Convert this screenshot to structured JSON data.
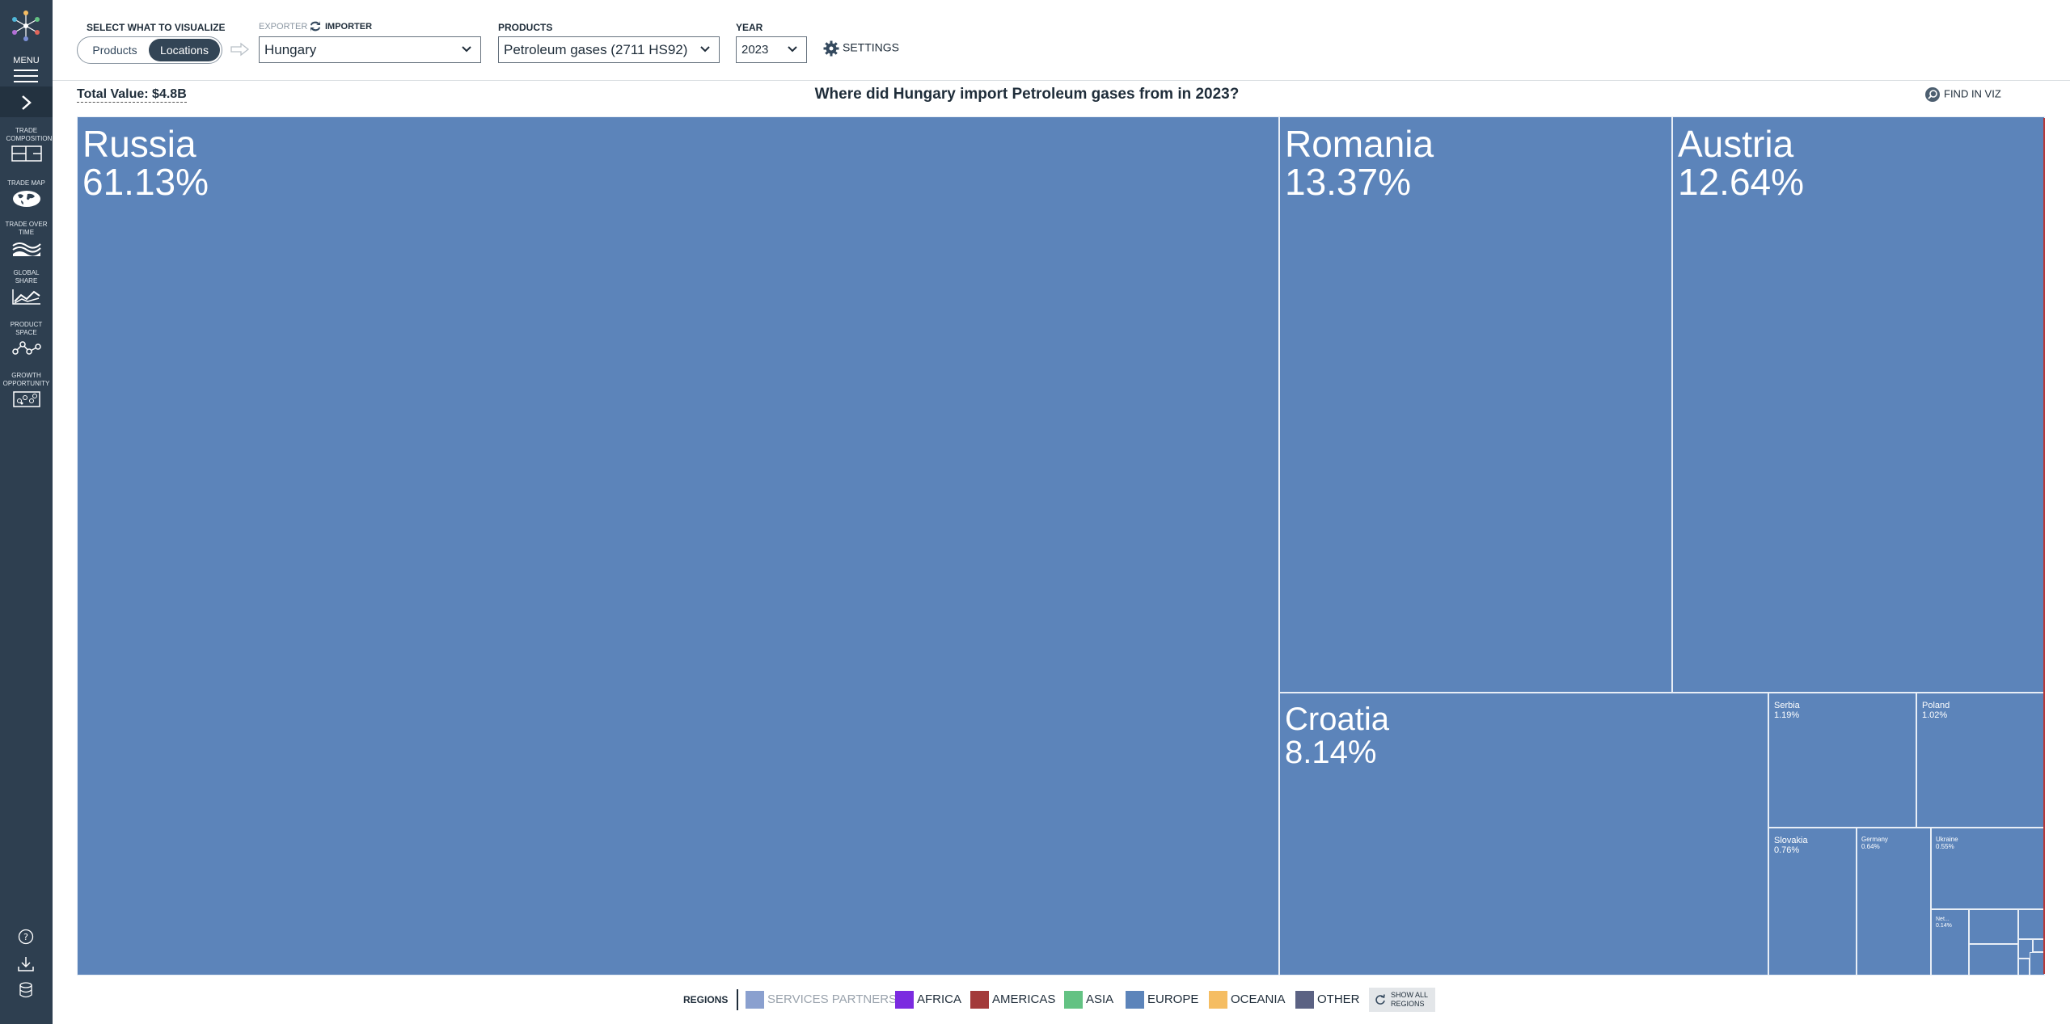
{
  "sidebar": {
    "menu_label": "MENU",
    "nav": [
      {
        "label": "TRADE COMPOSITION",
        "icon": "treemap-icon"
      },
      {
        "label": "TRADE MAP",
        "icon": "globe-icon"
      },
      {
        "label": "TRADE OVER TIME",
        "icon": "stacked-area-icon"
      },
      {
        "label": "GLOBAL SHARE",
        "icon": "line-chart-icon"
      },
      {
        "label": "PRODUCT SPACE",
        "icon": "network-icon"
      },
      {
        "label": "GROWTH OPPORTUNITY",
        "icon": "scatter-icon"
      }
    ],
    "bottom_icons": [
      "help-icon",
      "download-icon",
      "database-icon"
    ]
  },
  "header": {
    "select_label": "SELECT WHAT TO VISUALIZE",
    "toggle": {
      "products": "Products",
      "locations": "Locations",
      "selected": "Locations"
    },
    "exporter_label": "EXPORTER",
    "importer_label": "IMPORTER",
    "location_value": "Hungary",
    "products_label": "PRODUCTS",
    "product_value": "Petroleum gases (2711 HS92)",
    "year_label": "YEAR",
    "year_value": "2023",
    "settings_label": "SETTINGS"
  },
  "viz": {
    "total_value": "Total Value: $4.8B",
    "title": "Where did Hungary import Petroleum gases from in 2023?",
    "find_label": "FIND IN VIZ"
  },
  "chart_data": {
    "type": "treemap",
    "title": "Where did Hungary import Petroleum gases from in 2023?",
    "total": "$4.8B",
    "items": [
      {
        "name": "Russia",
        "share": "61.13%",
        "region": "Europe"
      },
      {
        "name": "Romania",
        "share": "13.37%",
        "region": "Europe"
      },
      {
        "name": "Austria",
        "share": "12.64%",
        "region": "Europe"
      },
      {
        "name": "Croatia",
        "share": "8.14%",
        "region": "Europe"
      },
      {
        "name": "Serbia",
        "share": "1.19%",
        "region": "Europe"
      },
      {
        "name": "Poland",
        "share": "1.02%",
        "region": "Europe"
      },
      {
        "name": "Slovakia",
        "share": "0.76%",
        "region": "Europe"
      },
      {
        "name": "Germany",
        "share": "0.64%",
        "region": "Europe"
      },
      {
        "name": "Ukraine",
        "share": "0.55%",
        "region": "Europe"
      },
      {
        "name": "Net...",
        "share": "0.14%",
        "region": "Europe"
      }
    ],
    "colors": {
      "europe": "#5c84ba"
    }
  },
  "legend": {
    "label": "REGIONS",
    "items": [
      {
        "label": "SERVICES PARTNERS",
        "color": "#8aa0cf"
      },
      {
        "label": "AFRICA",
        "color": "#7b2be0"
      },
      {
        "label": "AMERICAS",
        "color": "#a33a3a"
      },
      {
        "label": "ASIA",
        "color": "#63c283"
      },
      {
        "label": "EUROPE",
        "color": "#5c84ba"
      },
      {
        "label": "OCEANIA",
        "color": "#f5bd62"
      },
      {
        "label": "OTHER",
        "color": "#5b6283"
      }
    ],
    "show_all": "SHOW ALL REGIONS"
  }
}
